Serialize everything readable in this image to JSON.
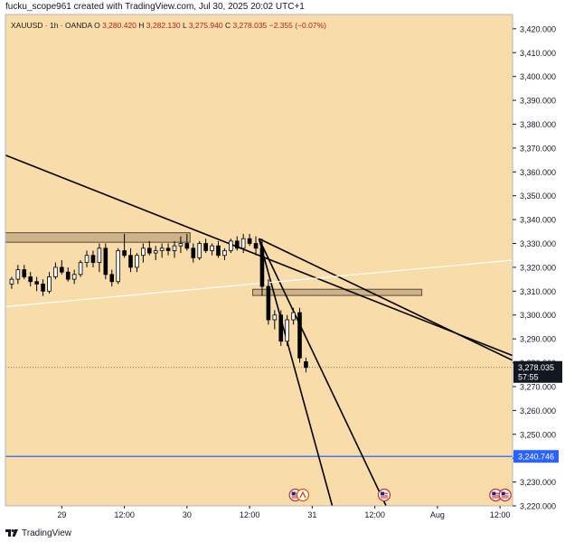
{
  "header": {
    "caption": "fucku_scope961 created with TradingView.com, Jul 30, 2025 20:02 UTC+1"
  },
  "legend": {
    "symbol": "XAUUSD · 1h · OANDA",
    "o_label": "O",
    "o_value": "3,280.420",
    "h_label": "H",
    "h_value": "3,282.130",
    "l_label": "L",
    "l_value": "3,275.940",
    "c_label": "C",
    "c_value": "3,278.035",
    "change": "−2.355 (−0.07%)"
  },
  "footer": {
    "brand": "TradingView"
  },
  "colors": {
    "background": "#f8dcaa",
    "zone_fill": "#c9ad85",
    "zone_stroke": "#5a4a38",
    "blue_line": "#2962ff",
    "trendline": "#000000",
    "white_line": "#ffffff",
    "price_label_bg": "#131722",
    "blue_label_bg": "#2962ff"
  },
  "chart_data": {
    "type": "candlestick",
    "symbol": "XAUUSD",
    "timeframe": "1h",
    "y_ticks": [
      3220,
      3230,
      3240,
      3250,
      3260,
      3270,
      3280,
      3290,
      3300,
      3310,
      3320,
      3330,
      3340,
      3350,
      3360,
      3370,
      3380,
      3390,
      3400,
      3410,
      3420
    ],
    "y_tick_labels": [
      "3,220.000",
      "3,230.000",
      "3,240.000",
      "3,250.000",
      "3,260.000",
      "3,270.000",
      "3,280.000",
      "3,290.000",
      "3,300.000",
      "3,310.000",
      "3,320.000",
      "3,330.000",
      "3,340.000",
      "3,350.000",
      "3,360.000",
      "3,370.000",
      "3,380.000",
      "3,390.000",
      "3,400.000",
      "3,410.000",
      "3,420.000"
    ],
    "ylim": [
      3220,
      3426
    ],
    "x_range": [
      -9,
      72
    ],
    "x_ticks": [
      {
        "x": 0,
        "label": "29"
      },
      {
        "x": 10,
        "label": "12:00"
      },
      {
        "x": 20,
        "label": "30"
      },
      {
        "x": 30,
        "label": "12:00"
      },
      {
        "x": 40,
        "label": "31"
      },
      {
        "x": 50,
        "label": "12:00"
      },
      {
        "x": 60,
        "label": "Aug"
      },
      {
        "x": 70,
        "label": "12:00"
      }
    ],
    "last_price": 3278.035,
    "last_price_label": "3,278.035",
    "countdown": "57:55",
    "support_level": 3240.746,
    "support_label": "3,240.746",
    "candles": [
      [
        -8,
        3313,
        3316,
        3311,
        3315
      ],
      [
        -7,
        3315,
        3321,
        3313,
        3319
      ],
      [
        -6,
        3319,
        3321,
        3315,
        3316
      ],
      [
        -5,
        3316,
        3318,
        3312,
        3314
      ],
      [
        -4,
        3314,
        3316,
        3310,
        3313
      ],
      [
        -3,
        3313,
        3315,
        3308,
        3310
      ],
      [
        -2,
        3310,
        3318,
        3309,
        3316
      ],
      [
        -1,
        3316,
        3322,
        3315,
        3320
      ],
      [
        0,
        3320,
        3323,
        3317,
        3318
      ],
      [
        1,
        3318,
        3320,
        3314,
        3315
      ],
      [
        2,
        3315,
        3319,
        3313,
        3317
      ],
      [
        3,
        3317,
        3323,
        3316,
        3322
      ],
      [
        4,
        3322,
        3327,
        3320,
        3325
      ],
      [
        5,
        3325,
        3327,
        3320,
        3322
      ],
      [
        6,
        3322,
        3330,
        3318,
        3328
      ],
      [
        7,
        3328,
        3330,
        3315,
        3317
      ],
      [
        8,
        3317,
        3319,
        3312,
        3314
      ],
      [
        9,
        3314,
        3328,
        3313,
        3327
      ],
      [
        10,
        3327,
        3334,
        3324,
        3325
      ],
      [
        11,
        3325,
        3328,
        3318,
        3320
      ],
      [
        12,
        3320,
        3326,
        3318,
        3325
      ],
      [
        13,
        3325,
        3330,
        3322,
        3328
      ],
      [
        14,
        3328,
        3331,
        3325,
        3326
      ],
      [
        15,
        3326,
        3329,
        3323,
        3327
      ],
      [
        16,
        3327,
        3330,
        3324,
        3328
      ],
      [
        17,
        3328,
        3330,
        3325,
        3327
      ],
      [
        18,
        3327,
        3331,
        3324,
        3329
      ],
      [
        19,
        3329,
        3333,
        3326,
        3330
      ],
      [
        20,
        3330,
        3334,
        3327,
        3328
      ],
      [
        21,
        3328,
        3330,
        3322,
        3324
      ],
      [
        22,
        3324,
        3331,
        3323,
        3330
      ],
      [
        23,
        3330,
        3332,
        3326,
        3327
      ],
      [
        24,
        3327,
        3330,
        3325,
        3329
      ],
      [
        25,
        3329,
        3331,
        3324,
        3325
      ],
      [
        26,
        3325,
        3328,
        3323,
        3327
      ],
      [
        27,
        3327,
        3332,
        3326,
        3331
      ],
      [
        28,
        3331,
        3333,
        3327,
        3328
      ],
      [
        29,
        3328,
        3334,
        3326,
        3332
      ],
      [
        30,
        3332,
        3334,
        3329,
        3330
      ],
      [
        31,
        3330,
        3333,
        3325,
        3328
      ],
      [
        32,
        3328,
        3332,
        3308,
        3312
      ],
      [
        33,
        3312,
        3315,
        3296,
        3298
      ],
      [
        34,
        3298,
        3302,
        3294,
        3300
      ],
      [
        35,
        3300,
        3302,
        3287,
        3289
      ],
      [
        36,
        3289,
        3300,
        3287,
        3298
      ],
      [
        37,
        3298,
        3303,
        3296,
        3301
      ],
      [
        38,
        3301,
        3303,
        3280,
        3282
      ],
      [
        39,
        3280.42,
        3282.13,
        3275.94,
        3278.035
      ]
    ],
    "zones": [
      {
        "x1": -9,
        "x2": 20.5,
        "y_low": 3330.5,
        "y_high": 3334.5
      },
      {
        "x1": 30.5,
        "x2": 57.5,
        "y_low": 3308.2,
        "y_high": 3310.8
      }
    ],
    "trendlines": [
      {
        "x1": -9,
        "y1": 3367,
        "x2": 72,
        "y2": 3283,
        "color": "black"
      },
      {
        "x1": 31.5,
        "y1": 3332,
        "x2": 43.2,
        "y2": 3220,
        "color": "black"
      },
      {
        "x1": 31.5,
        "y1": 3332,
        "x2": 51.8,
        "y2": 3220,
        "color": "black"
      },
      {
        "x1": 31.5,
        "y1": 3332,
        "x2": 72,
        "y2": 3281,
        "color": "black"
      },
      {
        "x1": -9,
        "y1": 3303.5,
        "x2": 72,
        "y2": 3323,
        "color": "white"
      }
    ],
    "event_markers": [
      {
        "x": 37.3,
        "type": "us-flag"
      },
      {
        "x": 38.5,
        "type": "earnings"
      },
      {
        "x": 51.5,
        "type": "us-flag"
      },
      {
        "x": 69.3,
        "type": "us-flag"
      },
      {
        "x": 70.8,
        "type": "us-flag"
      }
    ]
  }
}
